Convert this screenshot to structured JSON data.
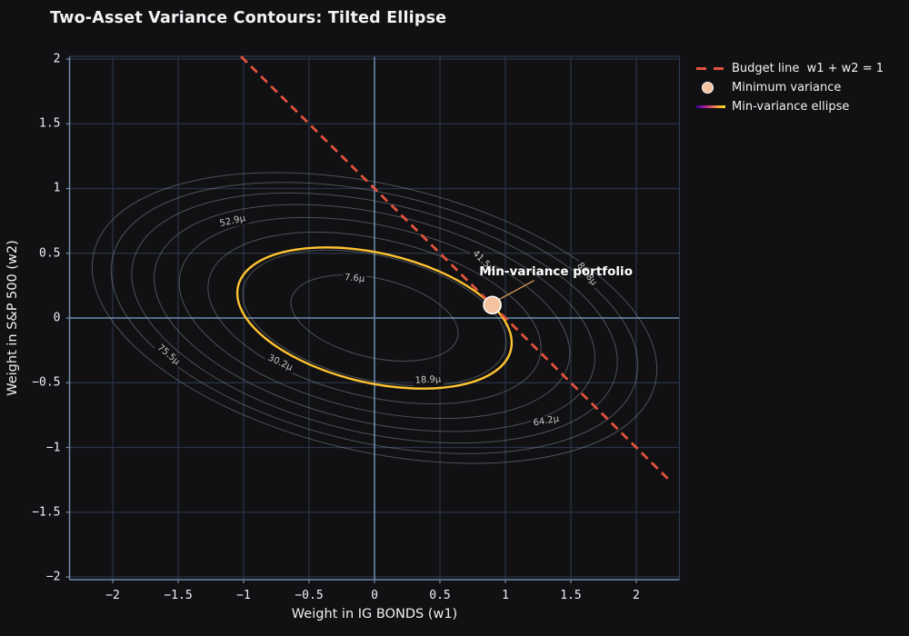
{
  "title": "Two-Asset Variance Contours: Tilted Ellipse",
  "chart_data": {
    "type": "contour",
    "title": "Two-Asset Variance Contours: Tilted Ellipse",
    "xlabel": "Weight in IG BONDS (w1)",
    "ylabel": "Weight in S&P 500 (w2)",
    "x_range": [
      -2.33,
      2.33
    ],
    "y_range": [
      -2.021,
      2.021
    ],
    "grid": true,
    "legend_position": "top-right",
    "x_ticks": [
      {
        "v": -2,
        "label": "−2"
      },
      {
        "v": -1.5,
        "label": "−1.5"
      },
      {
        "v": -1,
        "label": "−1"
      },
      {
        "v": -0.5,
        "label": "−0.5"
      },
      {
        "v": 0,
        "label": "0"
      },
      {
        "v": 0.5,
        "label": "0.5"
      },
      {
        "v": 1,
        "label": "1"
      },
      {
        "v": 1.5,
        "label": "1.5"
      },
      {
        "v": 2,
        "label": "2"
      }
    ],
    "y_ticks": [
      {
        "v": 2,
        "label": "2"
      },
      {
        "v": 1.5,
        "label": "1.5"
      },
      {
        "v": 1,
        "label": "1"
      },
      {
        "v": 0.5,
        "label": "0.5"
      },
      {
        "v": 0,
        "label": "0"
      },
      {
        "v": -0.5,
        "label": "−0.5"
      },
      {
        "v": -1,
        "label": "−1"
      },
      {
        "v": -1.5,
        "label": "−1.5"
      },
      {
        "v": -2,
        "label": "−2"
      }
    ],
    "contour_center": [
      0,
      0
    ],
    "ellipse_rotation_deg": 13.1,
    "contour_levels": [
      {
        "label": "7.6µ",
        "value_microvariance": 7.6,
        "semi_major": 0.652,
        "semi_minor": 0.305,
        "label_x": -0.155,
        "label_y": 0.302,
        "label_rot": 5
      },
      {
        "label": "18.9µ",
        "value_microvariance": 18.9,
        "semi_major": 1.028,
        "semi_minor": 0.481,
        "label_x": 0.41,
        "label_y": -0.484,
        "label_rot": -3
      },
      {
        "label": "30.2µ",
        "value_microvariance": 30.2,
        "semi_major": 1.299,
        "semi_minor": 0.608,
        "label_x": -0.722,
        "label_y": -0.351,
        "label_rot": 25
      },
      {
        "label": "41.5µ",
        "value_microvariance": 41.5,
        "semi_major": 1.523,
        "semi_minor": 0.712,
        "label_x": 0.826,
        "label_y": 0.435,
        "label_rot": 45
      },
      {
        "label": "52.9µ",
        "value_microvariance": 52.9,
        "semi_major": 1.719,
        "semi_minor": 0.804,
        "label_x": -1.083,
        "label_y": 0.744,
        "label_rot": -13
      },
      {
        "label": "64.2µ",
        "value_microvariance": 64.2,
        "semi_major": 1.894,
        "semi_minor": 0.886,
        "label_x": 1.313,
        "label_y": -0.8,
        "label_rot": -10
      },
      {
        "label": "75.5µ",
        "value_microvariance": 75.5,
        "semi_major": 2.054,
        "semi_minor": 0.961,
        "label_x": -1.576,
        "label_y": -0.288,
        "label_rot": 40
      },
      {
        "label": "86.8µ",
        "value_microvariance": 86.8,
        "semi_major": 2.202,
        "semi_minor": 1.03,
        "label_x": 1.618,
        "label_y": 0.337,
        "label_rot": 52
      }
    ],
    "min_variance_ellipse": {
      "semi_major": 1.07,
      "semi_minor": 0.5
    },
    "budget_line": {
      "equation": "w1 + w2 = 1",
      "p1": [
        -1.02,
        2.02
      ],
      "p2": [
        2.25,
        -1.25
      ]
    },
    "min_variance_point": {
      "w1": 0.9,
      "w2": 0.1
    },
    "annotation": {
      "text": "Min-variance portfolio",
      "text_x": 0.8,
      "text_y": 0.355,
      "leader_from": [
        1.22,
        0.29
      ],
      "leader_to": [
        0.945,
        0.14
      ]
    },
    "legend": [
      {
        "type": "dashed-line",
        "label": "Budget line  w1 + w2 = 1"
      },
      {
        "type": "dot",
        "label": "Minimum variance"
      },
      {
        "type": "gradient-line",
        "label": "Min-variance ellipse"
      }
    ],
    "colors": {
      "background": "#111114",
      "grid": "#293447",
      "zero_line": "#5e7b99",
      "spine": "#7289a6",
      "spine_dim": "#2d3a4c",
      "contour": "#9aa0a8",
      "contour_label": "#c6c6c8",
      "budget_line": "#e2523c",
      "min_variance_ellipse": "#ffc331",
      "point_fill": "#f4c29e",
      "point_edge": "#ffffff",
      "leader": "#dd9a55",
      "gradient_swatch": [
        "#2d0594",
        "#9c179e",
        "#d8576b",
        "#fba238",
        "#f7e225"
      ]
    }
  }
}
